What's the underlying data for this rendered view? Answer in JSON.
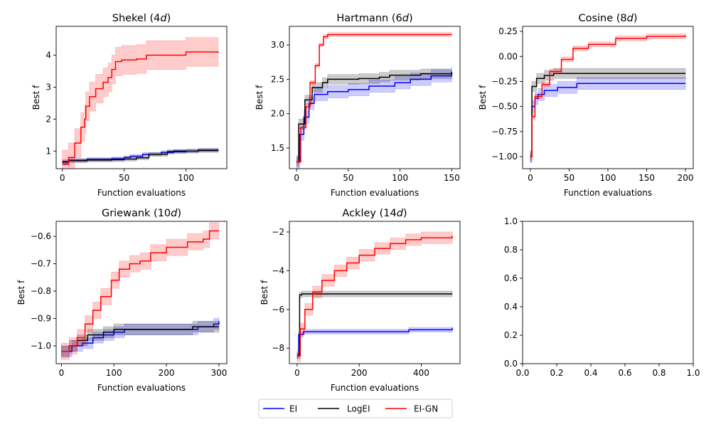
{
  "chart_data": {
    "type": "line",
    "colors": {
      "EI": "#0000ff",
      "LogEI": "#000000",
      "EI-GN": "#ff0000"
    },
    "legend": {
      "placement": "bottom-center",
      "entries": [
        "EI",
        "LogEI",
        "EI-GN"
      ]
    },
    "panels": [
      {
        "title_prefix": "Shekel (4",
        "title_var": "d",
        "title_suffix": ")",
        "xlabel": "Function evaluations",
        "ylabel": "Best f",
        "xlim": [
          -5,
          133
        ],
        "ylim": [
          0.45,
          4.9
        ],
        "xticks": [
          0,
          50,
          100
        ],
        "yticks": [
          1,
          2,
          3,
          4
        ],
        "tick_labels_x": [
          "0",
          "50",
          "100"
        ],
        "tick_labels_y": [
          "1",
          "2",
          "3",
          "4"
        ],
        "series": [
          {
            "name": "EI",
            "points": [
              [
                0,
                0.65
              ],
              [
                5,
                0.71
              ],
              [
                20,
                0.74
              ],
              [
                40,
                0.76
              ],
              [
                50,
                0.8
              ],
              [
                55,
                0.84
              ],
              [
                65,
                0.9
              ],
              [
                80,
                0.96
              ],
              [
                90,
                1.0
              ],
              [
                110,
                1.03
              ],
              [
                126,
                1.05
              ]
            ],
            "band": 0.05
          },
          {
            "name": "LogEI",
            "points": [
              [
                0,
                0.67
              ],
              [
                5,
                0.7
              ],
              [
                20,
                0.72
              ],
              [
                40,
                0.73
              ],
              [
                50,
                0.75
              ],
              [
                60,
                0.79
              ],
              [
                70,
                0.9
              ],
              [
                85,
                0.98
              ],
              [
                100,
                1.0
              ],
              [
                110,
                1.02
              ],
              [
                126,
                1.02
              ]
            ],
            "band": 0.06
          },
          {
            "name": "EI-GN",
            "points": [
              [
                0,
                0.58
              ],
              [
                5,
                0.8
              ],
              [
                10,
                1.25
              ],
              [
                15,
                1.75
              ],
              [
                18,
                2.0
              ],
              [
                19,
                2.4
              ],
              [
                22,
                2.7
              ],
              [
                27,
                2.95
              ],
              [
                33,
                3.15
              ],
              [
                37,
                3.3
              ],
              [
                40,
                3.55
              ],
              [
                43,
                3.8
              ],
              [
                48,
                3.85
              ],
              [
                60,
                3.88
              ],
              [
                68,
                4.0
              ],
              [
                85,
                4.0
              ],
              [
                100,
                4.1
              ],
              [
                126,
                4.12
              ]
            ],
            "band": 0.45
          }
        ]
      },
      {
        "title_prefix": "Hartmann (6",
        "title_var": "d",
        "title_suffix": ")",
        "xlabel": "Function evaluations",
        "ylabel": "Best f",
        "xlim": [
          -7,
          158
        ],
        "ylim": [
          1.2,
          3.27
        ],
        "xticks": [
          0,
          50,
          100,
          150
        ],
        "yticks": [
          1.5,
          2.0,
          2.5,
          3.0
        ],
        "tick_labels_x": [
          "0",
          "50",
          "100",
          "150"
        ],
        "tick_labels_y": [
          "1.5",
          "2.0",
          "2.5",
          "3.0"
        ],
        "series": [
          {
            "name": "EI",
            "points": [
              [
                0,
                1.3
              ],
              [
                3,
                1.7
              ],
              [
                7,
                1.95
              ],
              [
                12,
                2.15
              ],
              [
                17,
                2.28
              ],
              [
                30,
                2.32
              ],
              [
                50,
                2.35
              ],
              [
                70,
                2.4
              ],
              [
                95,
                2.45
              ],
              [
                110,
                2.5
              ],
              [
                130,
                2.55
              ],
              [
                150,
                2.6
              ]
            ],
            "band": 0.09
          },
          {
            "name": "LogEI",
            "points": [
              [
                0,
                1.3
              ],
              [
                2,
                1.85
              ],
              [
                8,
                2.2
              ],
              [
                15,
                2.38
              ],
              [
                25,
                2.45
              ],
              [
                30,
                2.5
              ],
              [
                60,
                2.51
              ],
              [
                80,
                2.53
              ],
              [
                90,
                2.56
              ],
              [
                120,
                2.58
              ],
              [
                150,
                2.61
              ]
            ],
            "band": 0.07
          },
          {
            "name": "EI-GN",
            "points": [
              [
                0,
                1.3
              ],
              [
                4,
                1.8
              ],
              [
                9,
                2.1
              ],
              [
                13,
                2.45
              ],
              [
                18,
                2.7
              ],
              [
                22,
                3.0
              ],
              [
                26,
                3.12
              ],
              [
                30,
                3.15
              ],
              [
                150,
                3.15
              ]
            ],
            "band": 0.03
          }
        ]
      },
      {
        "title_prefix": "Cosine (8",
        "title_var": "d",
        "title_suffix": ")",
        "xlabel": "Function evaluations",
        "ylabel": "Best f",
        "xlim": [
          -10,
          210
        ],
        "ylim": [
          -1.12,
          0.3
        ],
        "xticks": [
          0,
          50,
          100,
          150,
          200
        ],
        "yticks": [
          -1.0,
          -0.75,
          -0.5,
          -0.25,
          0.0,
          0.25
        ],
        "tick_labels_x": [
          "0",
          "50",
          "100",
          "150",
          "200"
        ],
        "tick_labels_y": [
          "−1.00",
          "−0.75",
          "−0.50",
          "−0.25",
          "0.00",
          "0.25"
        ],
        "series": [
          {
            "name": "EI",
            "points": [
              [
                0,
                -1.0
              ],
              [
                2,
                -0.5
              ],
              [
                6,
                -0.42
              ],
              [
                10,
                -0.38
              ],
              [
                18,
                -0.34
              ],
              [
                35,
                -0.31
              ],
              [
                60,
                -0.27
              ],
              [
                200,
                -0.27
              ]
            ],
            "band": 0.06
          },
          {
            "name": "LogEI",
            "points": [
              [
                0,
                -1.0
              ],
              [
                2,
                -0.3
              ],
              [
                8,
                -0.22
              ],
              [
                18,
                -0.19
              ],
              [
                30,
                -0.17
              ],
              [
                200,
                -0.17
              ]
            ],
            "band": 0.05
          },
          {
            "name": "EI-GN",
            "points": [
              [
                0,
                -1.0
              ],
              [
                2,
                -0.6
              ],
              [
                6,
                -0.4
              ],
              [
                15,
                -0.28
              ],
              [
                25,
                -0.15
              ],
              [
                40,
                -0.03
              ],
              [
                55,
                0.08
              ],
              [
                75,
                0.12
              ],
              [
                110,
                0.18
              ],
              [
                150,
                0.2
              ],
              [
                200,
                0.21
              ]
            ],
            "band": 0.025
          }
        ]
      },
      {
        "title_prefix": "Griewank (10",
        "title_var": "d",
        "title_suffix": ")",
        "xlabel": "Function evaluations",
        "ylabel": "Best f",
        "xlim": [
          -10,
          315
        ],
        "ylim": [
          -1.065,
          -0.545
        ],
        "xticks": [
          0,
          100,
          200,
          300
        ],
        "yticks": [
          -1.0,
          -0.9,
          -0.8,
          -0.7,
          -0.6
        ],
        "tick_labels_x": [
          "0",
          "100",
          "200",
          "300"
        ],
        "tick_labels_y": [
          "−1.0",
          "−0.9",
          "−0.8",
          "−0.7",
          "−0.6"
        ],
        "series": [
          {
            "name": "EI",
            "points": [
              [
                0,
                -1.02
              ],
              [
                20,
                -1.0
              ],
              [
                40,
                -0.99
              ],
              [
                60,
                -0.97
              ],
              [
                80,
                -0.96
              ],
              [
                100,
                -0.95
              ],
              [
                120,
                -0.94
              ],
              [
                200,
                -0.94
              ],
              [
                260,
                -0.93
              ],
              [
                290,
                -0.92
              ],
              [
                300,
                -0.91
              ]
            ],
            "band": 0.02
          },
          {
            "name": "LogEI",
            "points": [
              [
                0,
                -1.02
              ],
              [
                15,
                -1.0
              ],
              [
                30,
                -0.98
              ],
              [
                50,
                -0.96
              ],
              [
                80,
                -0.95
              ],
              [
                100,
                -0.94
              ],
              [
                200,
                -0.94
              ],
              [
                250,
                -0.93
              ],
              [
                300,
                -0.93
              ]
            ],
            "band": 0.02
          },
          {
            "name": "EI-GN",
            "points": [
              [
                0,
                -1.02
              ],
              [
                15,
                -1.0
              ],
              [
                30,
                -0.97
              ],
              [
                45,
                -0.92
              ],
              [
                60,
                -0.87
              ],
              [
                75,
                -0.82
              ],
              [
                95,
                -0.76
              ],
              [
                110,
                -0.72
              ],
              [
                130,
                -0.7
              ],
              [
                150,
                -0.69
              ],
              [
                170,
                -0.66
              ],
              [
                200,
                -0.64
              ],
              [
                240,
                -0.62
              ],
              [
                270,
                -0.61
              ],
              [
                282,
                -0.58
              ],
              [
                300,
                -0.58
              ]
            ],
            "band": 0.03
          }
        ]
      },
      {
        "title_prefix": "Ackley (14",
        "title_var": "d",
        "title_suffix": ")",
        "xlabel": "Function evaluations",
        "ylabel": "Best f",
        "xlim": [
          -25,
          525
        ],
        "ylim": [
          -8.8,
          -1.45
        ],
        "xticks": [
          0,
          200,
          400
        ],
        "yticks": [
          -8,
          -6,
          -4,
          -2
        ],
        "tick_labels_x": [
          "0",
          "200",
          "400"
        ],
        "tick_labels_y": [
          "−8",
          "−6",
          "−4",
          "−2"
        ],
        "series": [
          {
            "name": "EI",
            "points": [
              [
                0,
                -8.4
              ],
              [
                5,
                -7.3
              ],
              [
                20,
                -7.15
              ],
              [
                200,
                -7.15
              ],
              [
                340,
                -7.15
              ],
              [
                360,
                -7.05
              ],
              [
                500,
                -6.95
              ]
            ],
            "band": 0.12
          },
          {
            "name": "LogEI",
            "points": [
              [
                0,
                -8.4
              ],
              [
                8,
                -5.25
              ],
              [
                15,
                -5.2
              ],
              [
                500,
                -5.2
              ]
            ],
            "band": 0.15
          },
          {
            "name": "EI-GN",
            "points": [
              [
                0,
                -8.4
              ],
              [
                10,
                -7.0
              ],
              [
                25,
                -6.0
              ],
              [
                50,
                -5.1
              ],
              [
                80,
                -4.5
              ],
              [
                120,
                -4.0
              ],
              [
                160,
                -3.6
              ],
              [
                200,
                -3.2
              ],
              [
                250,
                -2.85
              ],
              [
                300,
                -2.6
              ],
              [
                350,
                -2.4
              ],
              [
                400,
                -2.3
              ],
              [
                500,
                -2.2
              ]
            ],
            "band": 0.3
          }
        ]
      },
      {
        "title_prefix": "",
        "title_var": "",
        "title_suffix": "",
        "xlabel": "",
        "ylabel": "",
        "xlim": [
          0,
          1
        ],
        "ylim": [
          0,
          1
        ],
        "xticks": [
          0,
          0.2,
          0.4,
          0.6,
          0.8,
          1.0
        ],
        "yticks": [
          0,
          0.2,
          0.4,
          0.6,
          0.8,
          1.0
        ],
        "tick_labels_x": [
          "0.0",
          "0.2",
          "0.4",
          "0.6",
          "0.8",
          "1.0"
        ],
        "tick_labels_y": [
          "0.0",
          "0.2",
          "0.4",
          "0.6",
          "0.8",
          "1.0"
        ],
        "series": []
      }
    ]
  }
}
